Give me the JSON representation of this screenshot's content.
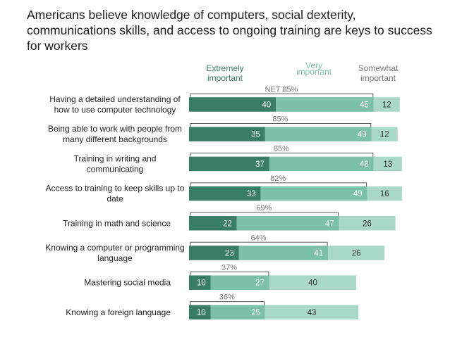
{
  "chart_data": {
    "type": "bar",
    "stacked": true,
    "orientation": "horizontal",
    "title": "Americans believe knowledge of computers, social dexterity, communications skills, and access to ongoing training are keys to success for workers",
    "legend": [
      {
        "lines": [
          "Extremely",
          "important"
        ],
        "color": "#3a7d66"
      },
      {
        "lines": [
          "Very",
          "important"
        ],
        "color": "#7cc0a9"
      },
      {
        "lines": [
          "Somewhat",
          "important"
        ],
        "color": "#a9d8c8"
      }
    ],
    "categories": [
      {
        "lines": [
          "Having a detailed understanding of",
          "how to use computer technology"
        ]
      },
      {
        "lines": [
          "Being able to work with people from",
          "many different backgrounds"
        ]
      },
      {
        "lines": [
          "Training in writing and",
          "communicating"
        ]
      },
      {
        "lines": [
          "Access to training to keep skills up to",
          "date"
        ]
      },
      {
        "lines": [
          "Training in math and science"
        ]
      },
      {
        "lines": [
          "Knowing a computer or programming",
          "language"
        ]
      },
      {
        "lines": [
          "Mastering social media"
        ]
      },
      {
        "lines": [
          "Knowing a foreign language"
        ]
      }
    ],
    "series": [
      {
        "name": "Extremely important",
        "values": [
          40,
          35,
          37,
          33,
          22,
          23,
          10,
          10
        ],
        "color": "#3a7d66"
      },
      {
        "name": "Very important",
        "values": [
          45,
          49,
          48,
          49,
          47,
          41,
          27,
          25
        ],
        "color": "#7cc0a9"
      },
      {
        "name": "Somewhat important",
        "values": [
          12,
          12,
          13,
          16,
          26,
          26,
          40,
          43
        ],
        "color": "#a9d8c8"
      }
    ],
    "net_labels": [
      "NET 85%",
      "85%",
      "85%",
      "82%",
      "69%",
      "64%",
      "37%",
      "36%"
    ],
    "xlim": [
      0,
      100
    ]
  }
}
